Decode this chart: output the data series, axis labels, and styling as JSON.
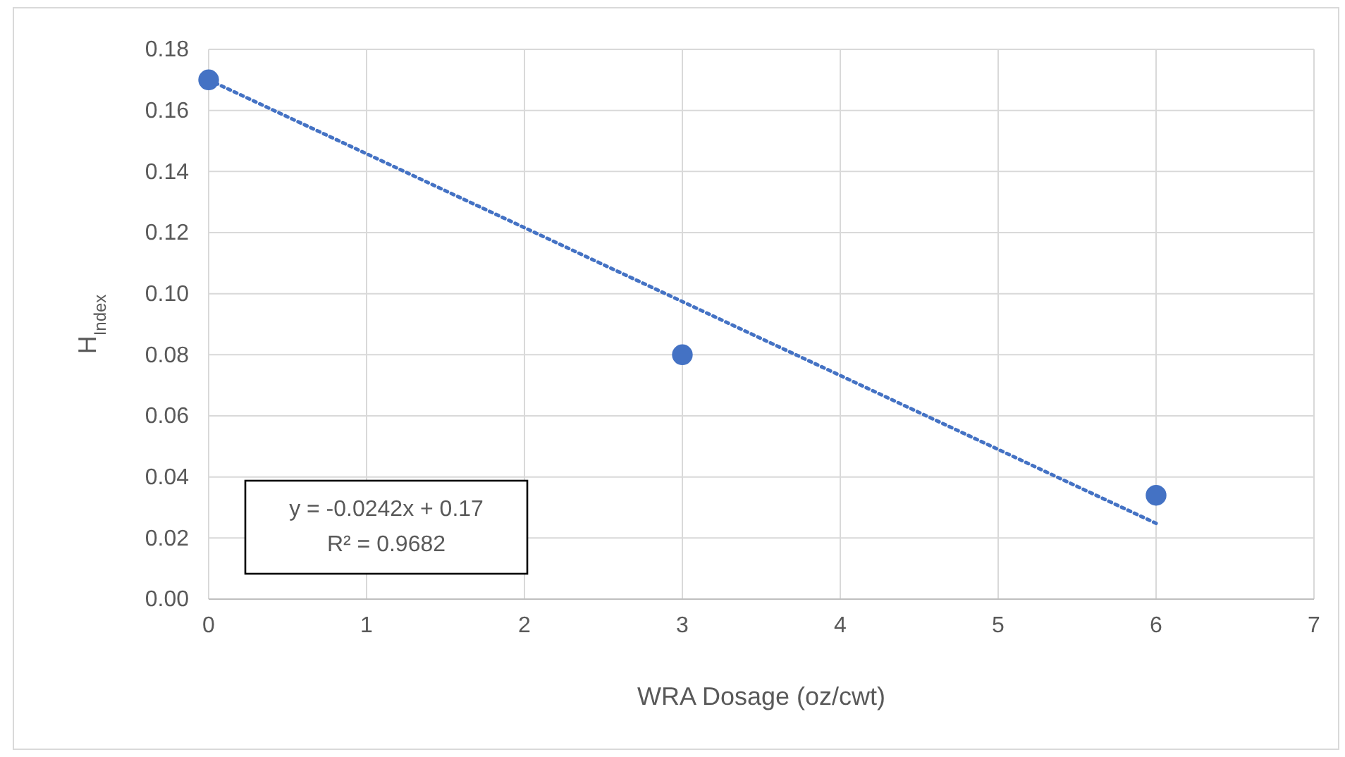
{
  "chart_data": {
    "type": "scatter",
    "xlabel": "WRA Dosage (oz/cwt)",
    "ylabel": "H$_{Index}$",
    "series": [
      {
        "color": "#4472c4",
        "x": [
          0,
          3,
          6
        ],
        "values": [
          0.17,
          0.08,
          0.034
        ],
        "marker": "circle"
      },
      {
        "type": "line",
        "color": "#4472c4",
        "x": [
          0,
          6
        ],
        "values": [
          0.17,
          0.0248
        ],
        "line_style": "dotted",
        "marker": "none"
      }
    ],
    "xlim": [
      0,
      7
    ],
    "xticks": [
      0,
      1,
      2,
      3,
      4,
      5,
      6,
      7
    ],
    "ylim": [
      0,
      0.18
    ],
    "yticks": [
      {
        "value": 0,
        "label": "0.00"
      },
      {
        "value": 0.02,
        "label": "0.02"
      },
      {
        "value": 0.04,
        "label": "0.04"
      },
      {
        "value": 0.06,
        "label": "0.06"
      },
      {
        "value": 0.08,
        "label": "0.08"
      },
      {
        "value": 0.1,
        "label": "0.10"
      },
      {
        "value": 0.12,
        "label": "0.12"
      },
      {
        "value": 0.14,
        "label": "0.14"
      },
      {
        "value": 0.16,
        "label": "0.16"
      },
      {
        "value": 0.18,
        "label": "0.18"
      }
    ],
    "grid": true,
    "annotations": [
      "y = -0.0242x + 0.17",
      "R² = 0.9682"
    ]
  }
}
